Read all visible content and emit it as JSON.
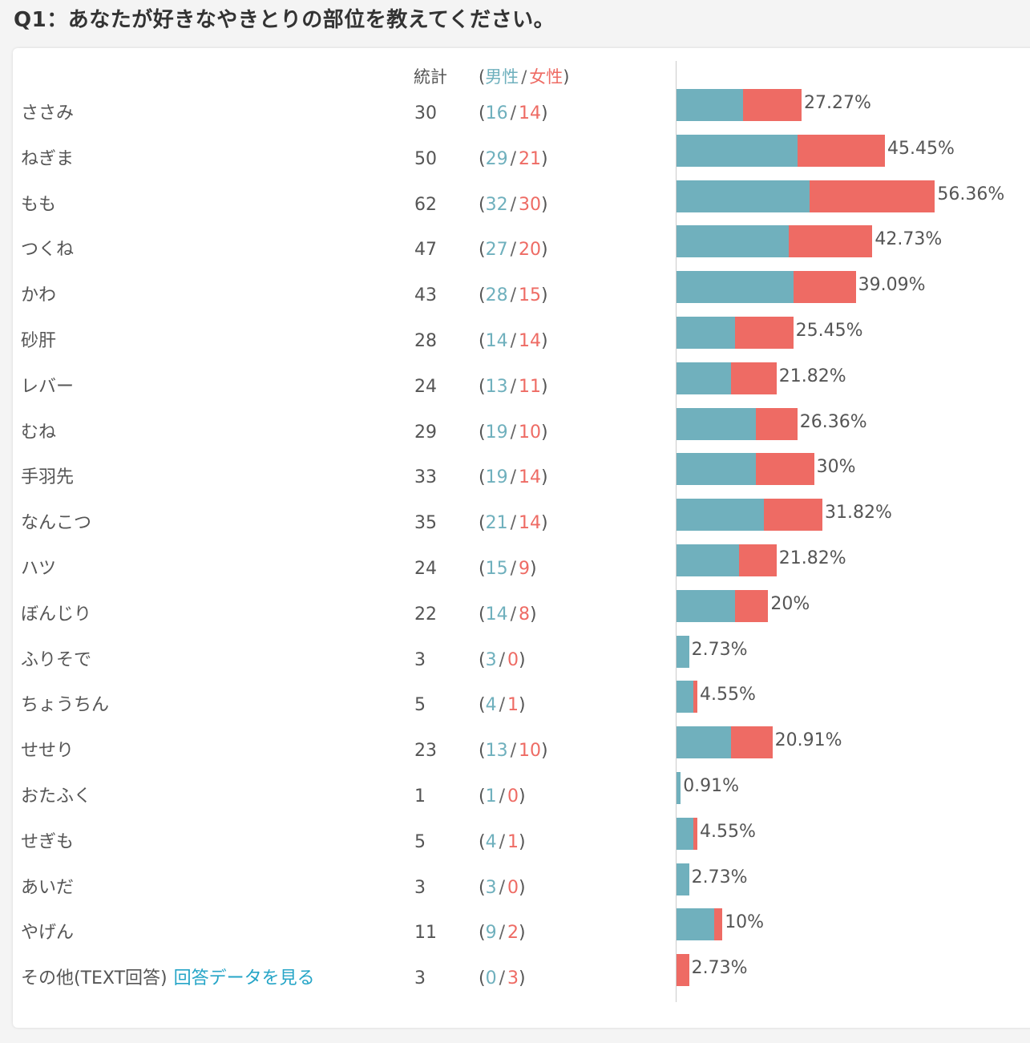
{
  "question": {
    "title": "Q1：あなたが好きなやきとりの部位を教えてください。"
  },
  "header": {
    "total": "統計",
    "open": "(",
    "male": "男性",
    "separator": "/",
    "female": "女性",
    "close": ")"
  },
  "other_link": "回答データを見る",
  "colors": {
    "male": "#70b0bd",
    "female": "#ee6b64"
  },
  "chart_data": {
    "type": "bar",
    "orientation": "horizontal",
    "stacked": true,
    "series_colors": {
      "male": "#70b0bd",
      "female": "#ee6b64"
    },
    "rows": [
      {
        "label": "ささみ",
        "total": 30,
        "male": 16,
        "female": 14,
        "pct": "27.27%"
      },
      {
        "label": "ねぎま",
        "total": 50,
        "male": 29,
        "female": 21,
        "pct": "45.45%"
      },
      {
        "label": "もも",
        "total": 62,
        "male": 32,
        "female": 30,
        "pct": "56.36%"
      },
      {
        "label": "つくね",
        "total": 47,
        "male": 27,
        "female": 20,
        "pct": "42.73%"
      },
      {
        "label": "かわ",
        "total": 43,
        "male": 28,
        "female": 15,
        "pct": "39.09%"
      },
      {
        "label": "砂肝",
        "total": 28,
        "male": 14,
        "female": 14,
        "pct": "25.45%"
      },
      {
        "label": "レバー",
        "total": 24,
        "male": 13,
        "female": 11,
        "pct": "21.82%"
      },
      {
        "label": "むね",
        "total": 29,
        "male": 19,
        "female": 10,
        "pct": "26.36%"
      },
      {
        "label": "手羽先",
        "total": 33,
        "male": 19,
        "female": 14,
        "pct": "30%"
      },
      {
        "label": "なんこつ",
        "total": 35,
        "male": 21,
        "female": 14,
        "pct": "31.82%"
      },
      {
        "label": "ハツ",
        "total": 24,
        "male": 15,
        "female": 9,
        "pct": "21.82%"
      },
      {
        "label": "ぼんじり",
        "total": 22,
        "male": 14,
        "female": 8,
        "pct": "20%"
      },
      {
        "label": "ふりそで",
        "total": 3,
        "male": 3,
        "female": 0,
        "pct": "2.73%"
      },
      {
        "label": "ちょうちん",
        "total": 5,
        "male": 4,
        "female": 1,
        "pct": "4.55%"
      },
      {
        "label": "せせり",
        "total": 23,
        "male": 13,
        "female": 10,
        "pct": "20.91%"
      },
      {
        "label": "おたふく",
        "total": 1,
        "male": 1,
        "female": 0,
        "pct": "0.91%"
      },
      {
        "label": "せぎも",
        "total": 5,
        "male": 4,
        "female": 1,
        "pct": "4.55%"
      },
      {
        "label": "あいだ",
        "total": 3,
        "male": 3,
        "female": 0,
        "pct": "2.73%"
      },
      {
        "label": "やげん",
        "total": 11,
        "male": 9,
        "female": 2,
        "pct": "10%"
      },
      {
        "label": "その他(TEXT回答)",
        "total": 3,
        "male": 0,
        "female": 3,
        "pct": "2.73%",
        "has_link": true
      }
    ]
  }
}
